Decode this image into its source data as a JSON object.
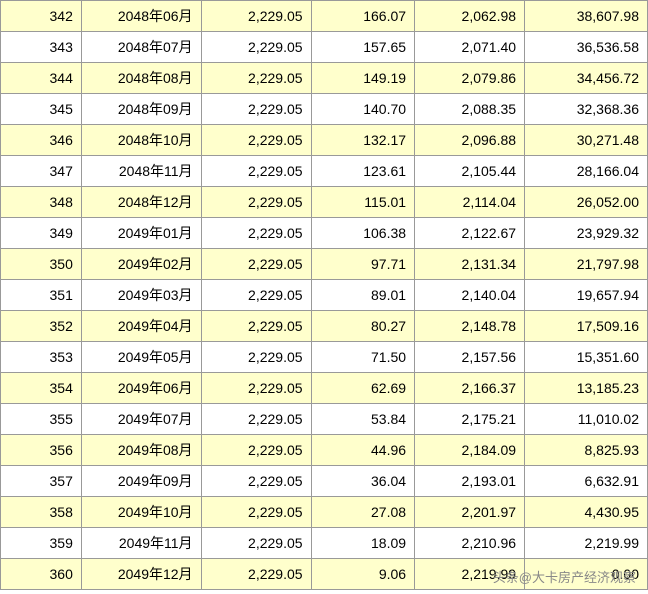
{
  "table": {
    "col_widths": [
      "12.5%",
      "18.5%",
      "17%",
      "16%",
      "17%",
      "19%"
    ],
    "highlight_color": "#ffffcc",
    "plain_color": "#ffffff",
    "border_color": "#999999",
    "text_color": "#000000",
    "font_size": 14,
    "rows": [
      {
        "hl": true,
        "c0": "342",
        "c1": "2048年06月",
        "c2": "2,229.05",
        "c3": "166.07",
        "c4": "2,062.98",
        "c5": "38,607.98"
      },
      {
        "hl": false,
        "c0": "343",
        "c1": "2048年07月",
        "c2": "2,229.05",
        "c3": "157.65",
        "c4": "2,071.40",
        "c5": "36,536.58"
      },
      {
        "hl": true,
        "c0": "344",
        "c1": "2048年08月",
        "c2": "2,229.05",
        "c3": "149.19",
        "c4": "2,079.86",
        "c5": "34,456.72"
      },
      {
        "hl": false,
        "c0": "345",
        "c1": "2048年09月",
        "c2": "2,229.05",
        "c3": "140.70",
        "c4": "2,088.35",
        "c5": "32,368.36"
      },
      {
        "hl": true,
        "c0": "346",
        "c1": "2048年10月",
        "c2": "2,229.05",
        "c3": "132.17",
        "c4": "2,096.88",
        "c5": "30,271.48"
      },
      {
        "hl": false,
        "c0": "347",
        "c1": "2048年11月",
        "c2": "2,229.05",
        "c3": "123.61",
        "c4": "2,105.44",
        "c5": "28,166.04"
      },
      {
        "hl": true,
        "c0": "348",
        "c1": "2048年12月",
        "c2": "2,229.05",
        "c3": "115.01",
        "c4": "2,114.04",
        "c5": "26,052.00"
      },
      {
        "hl": false,
        "c0": "349",
        "c1": "2049年01月",
        "c2": "2,229.05",
        "c3": "106.38",
        "c4": "2,122.67",
        "c5": "23,929.32"
      },
      {
        "hl": true,
        "c0": "350",
        "c1": "2049年02月",
        "c2": "2,229.05",
        "c3": "97.71",
        "c4": "2,131.34",
        "c5": "21,797.98"
      },
      {
        "hl": false,
        "c0": "351",
        "c1": "2049年03月",
        "c2": "2,229.05",
        "c3": "89.01",
        "c4": "2,140.04",
        "c5": "19,657.94"
      },
      {
        "hl": true,
        "c0": "352",
        "c1": "2049年04月",
        "c2": "2,229.05",
        "c3": "80.27",
        "c4": "2,148.78",
        "c5": "17,509.16"
      },
      {
        "hl": false,
        "c0": "353",
        "c1": "2049年05月",
        "c2": "2,229.05",
        "c3": "71.50",
        "c4": "2,157.56",
        "c5": "15,351.60"
      },
      {
        "hl": true,
        "c0": "354",
        "c1": "2049年06月",
        "c2": "2,229.05",
        "c3": "62.69",
        "c4": "2,166.37",
        "c5": "13,185.23"
      },
      {
        "hl": false,
        "c0": "355",
        "c1": "2049年07月",
        "c2": "2,229.05",
        "c3": "53.84",
        "c4": "2,175.21",
        "c5": "11,010.02"
      },
      {
        "hl": true,
        "c0": "356",
        "c1": "2049年08月",
        "c2": "2,229.05",
        "c3": "44.96",
        "c4": "2,184.09",
        "c5": "8,825.93"
      },
      {
        "hl": false,
        "c0": "357",
        "c1": "2049年09月",
        "c2": "2,229.05",
        "c3": "36.04",
        "c4": "2,193.01",
        "c5": "6,632.91"
      },
      {
        "hl": true,
        "c0": "358",
        "c1": "2049年10月",
        "c2": "2,229.05",
        "c3": "27.08",
        "c4": "2,201.97",
        "c5": "4,430.95"
      },
      {
        "hl": false,
        "c0": "359",
        "c1": "2049年11月",
        "c2": "2,229.05",
        "c3": "18.09",
        "c4": "2,210.96",
        "c5": "2,219.99"
      },
      {
        "hl": true,
        "c0": "360",
        "c1": "2049年12月",
        "c2": "2,229.05",
        "c3": "9.06",
        "c4": "2,219.99",
        "c5": "0.00"
      }
    ]
  },
  "watermark": "头条@大卡房产经济观察"
}
